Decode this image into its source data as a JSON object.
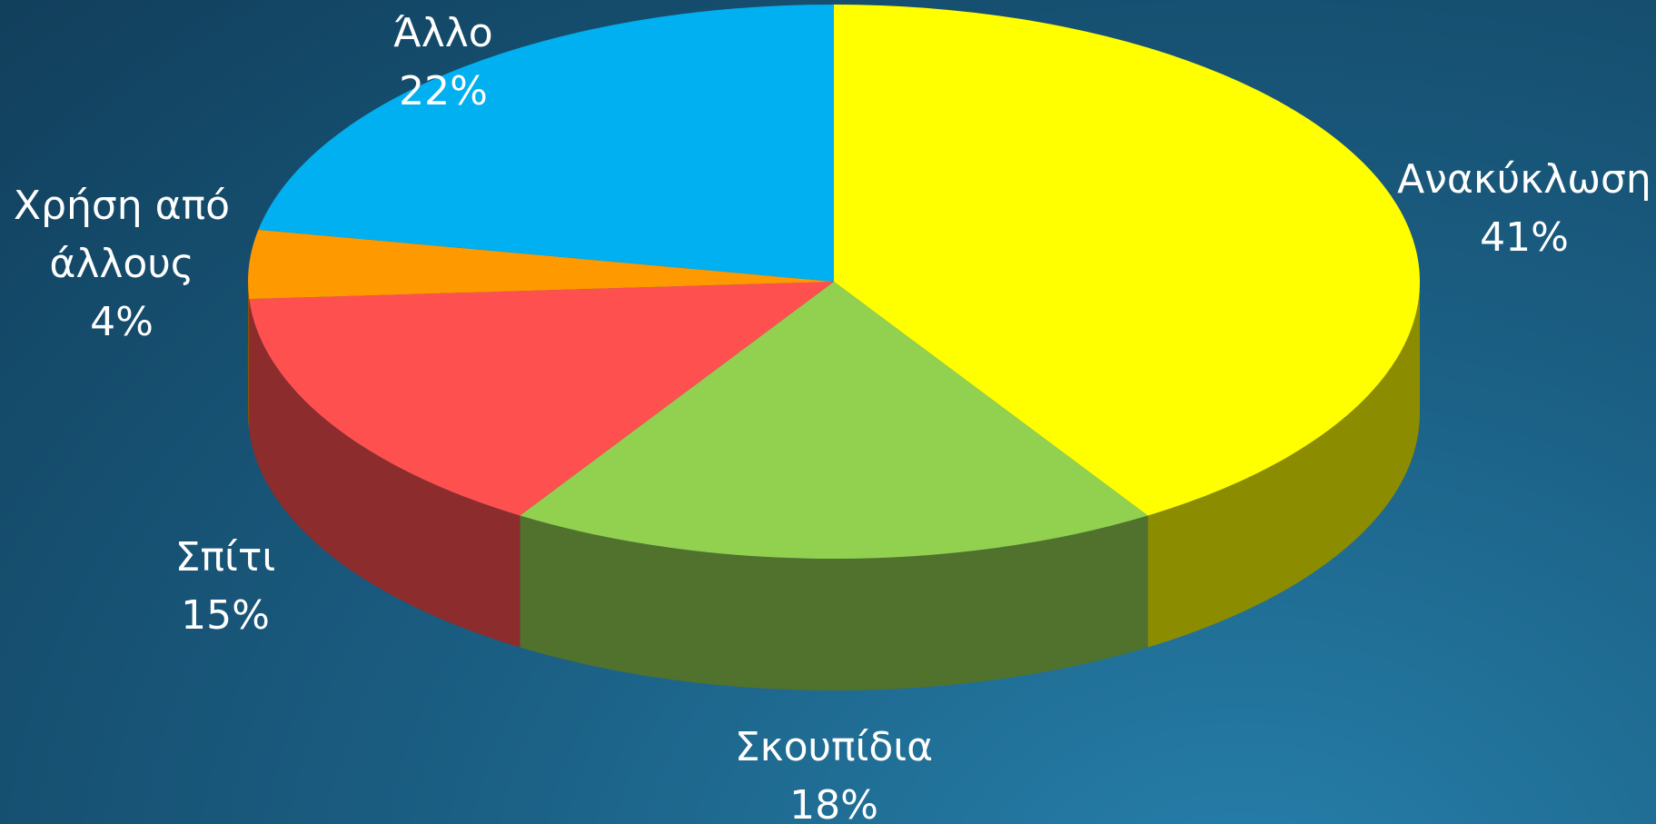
{
  "chart_data": {
    "type": "pie",
    "categories": [
      "Ανακύκλωση",
      "Σκουπίδια",
      "Σπίτι",
      "Χρήση από άλλους",
      "Άλλο"
    ],
    "values": [
      41,
      18,
      15,
      4,
      22
    ],
    "value_labels": [
      "41%",
      "18%",
      "15%",
      "4%",
      "22%"
    ],
    "colors": [
      "#ffff00",
      "#92d050",
      "#ff5050",
      "#ff9900",
      "#00b0f0"
    ]
  }
}
